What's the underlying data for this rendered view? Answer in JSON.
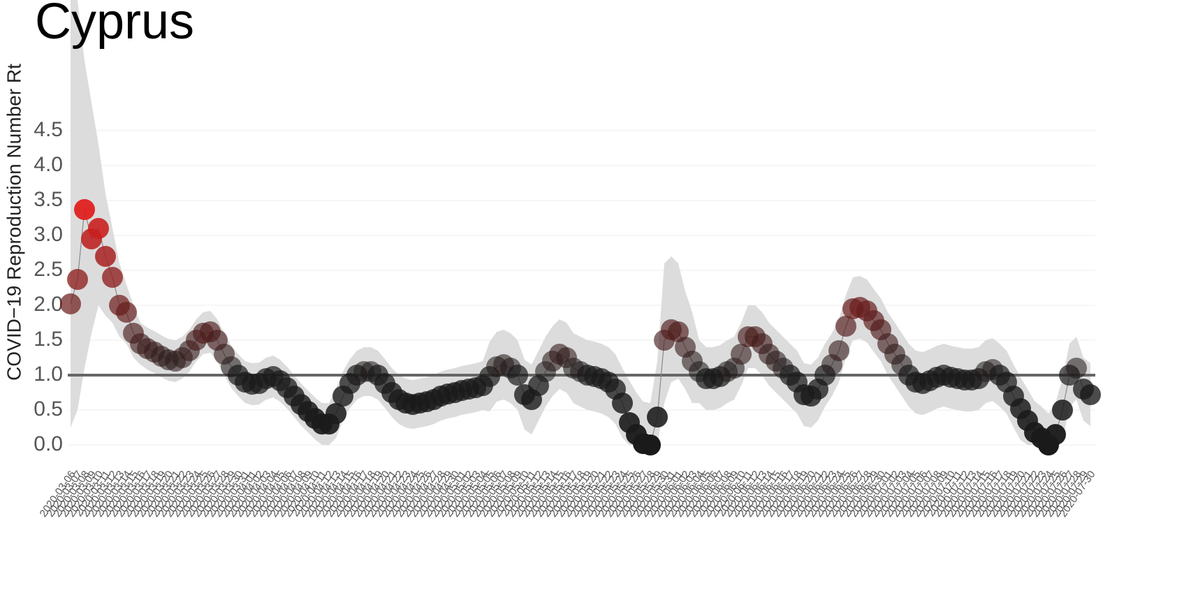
{
  "chart_data": {
    "type": "line",
    "title": "Cyprus",
    "y_label": "COVID−19 Reproduction Number Rt",
    "categories": [
      "2020-03-06",
      "2020-03-07",
      "2020-03-08",
      "2020-03-09",
      "2020-03-10",
      "2020-03-11",
      "2020-03-12",
      "2020-03-13",
      "2020-03-14",
      "2020-03-15",
      "2020-03-16",
      "2020-03-17",
      "2020-03-18",
      "2020-03-19",
      "2020-03-20",
      "2020-03-21",
      "2020-03-22",
      "2020-03-23",
      "2020-03-24",
      "2020-03-25",
      "2020-03-26",
      "2020-03-27",
      "2020-03-28",
      "2020-03-29",
      "2020-03-30",
      "2020-03-31",
      "2020-04-01",
      "2020-04-02",
      "2020-04-03",
      "2020-04-04",
      "2020-04-05",
      "2020-04-06",
      "2020-04-07",
      "2020-04-08",
      "2020-04-09",
      "2020-04-10",
      "2020-04-11",
      "2020-04-12",
      "2020-04-13",
      "2020-04-14",
      "2020-04-15",
      "2020-04-16",
      "2020-04-17",
      "2020-04-18",
      "2020-04-19",
      "2020-04-20",
      "2020-04-21",
      "2020-04-22",
      "2020-04-23",
      "2020-04-24",
      "2020-04-25",
      "2020-04-26",
      "2020-04-27",
      "2020-04-28",
      "2020-04-29",
      "2020-04-30",
      "2020-05-01",
      "2020-05-02",
      "2020-05-03",
      "2020-05-04",
      "2020-05-05",
      "2020-05-06",
      "2020-05-07",
      "2020-05-08",
      "2020-05-09",
      "2020-05-10",
      "2020-05-11",
      "2020-05-12",
      "2020-05-13",
      "2020-05-14",
      "2020-05-15",
      "2020-05-16",
      "2020-05-17",
      "2020-05-18",
      "2020-05-19",
      "2020-05-20",
      "2020-05-21",
      "2020-05-22",
      "2020-05-23",
      "2020-05-24",
      "2020-05-25",
      "2020-05-26",
      "2020-05-27",
      "2020-05-28",
      "2020-05-29",
      "2020-05-30",
      "2020-05-31",
      "2020-06-01",
      "2020-06-02",
      "2020-06-03",
      "2020-06-04",
      "2020-06-05",
      "2020-06-06",
      "2020-06-07",
      "2020-06-08",
      "2020-06-09",
      "2020-06-10",
      "2020-06-11",
      "2020-06-12",
      "2020-06-13",
      "2020-06-14",
      "2020-06-15",
      "2020-06-16",
      "2020-06-17",
      "2020-06-18",
      "2020-06-19",
      "2020-06-20",
      "2020-06-21",
      "2020-06-22",
      "2020-06-23",
      "2020-06-24",
      "2020-06-25",
      "2020-06-26",
      "2020-06-27",
      "2020-06-28",
      "2020-06-29",
      "2020-06-30",
      "2020-07-01",
      "2020-07-02",
      "2020-07-03",
      "2020-07-04",
      "2020-07-05",
      "2020-07-06",
      "2020-07-07",
      "2020-07-08",
      "2020-07-09",
      "2020-07-10",
      "2020-07-11",
      "2020-07-12",
      "2020-07-13",
      "2020-07-14",
      "2020-07-15",
      "2020-07-16",
      "2020-07-17",
      "2020-07-18",
      "2020-07-19",
      "2020-07-20",
      "2020-07-21",
      "2020-07-22",
      "2020-07-23",
      "2020-07-24",
      "2020-07-25",
      "2020-07-26",
      "2020-07-27",
      "2020-07-28",
      "2020-07-29",
      "2020-07-30"
    ],
    "values": [
      2.02,
      2.37,
      3.37,
      2.95,
      3.1,
      2.7,
      2.4,
      2.0,
      1.9,
      1.6,
      1.45,
      1.38,
      1.33,
      1.27,
      1.22,
      1.2,
      1.25,
      1.35,
      1.5,
      1.6,
      1.62,
      1.5,
      1.3,
      1.12,
      1.0,
      0.9,
      0.87,
      0.88,
      0.95,
      0.98,
      0.92,
      0.82,
      0.7,
      0.58,
      0.48,
      0.38,
      0.3,
      0.3,
      0.45,
      0.7,
      0.88,
      1.0,
      1.05,
      1.05,
      1.0,
      0.88,
      0.75,
      0.65,
      0.6,
      0.58,
      0.6,
      0.62,
      0.65,
      0.7,
      0.73,
      0.75,
      0.78,
      0.8,
      0.82,
      0.85,
      0.98,
      1.12,
      1.15,
      1.1,
      1.0,
      0.72,
      0.65,
      0.85,
      1.05,
      1.2,
      1.3,
      1.25,
      1.1,
      1.05,
      1.0,
      0.98,
      0.95,
      0.9,
      0.8,
      0.6,
      0.32,
      0.15,
      0.02,
      0.0,
      0.4,
      1.5,
      1.65,
      1.62,
      1.4,
      1.2,
      1.05,
      0.95,
      0.95,
      0.98,
      1.05,
      1.1,
      1.3,
      1.55,
      1.55,
      1.45,
      1.3,
      1.2,
      1.1,
      1.0,
      0.9,
      0.72,
      0.7,
      0.8,
      1.0,
      1.15,
      1.35,
      1.7,
      1.95,
      1.97,
      1.92,
      1.78,
      1.65,
      1.45,
      1.3,
      1.15,
      1.0,
      0.9,
      0.88,
      0.92,
      0.97,
      1.0,
      0.97,
      0.95,
      0.93,
      0.93,
      0.95,
      1.05,
      1.08,
      1.0,
      0.9,
      0.7,
      0.52,
      0.35,
      0.18,
      0.1,
      0.0,
      0.15,
      0.5,
      1.0,
      1.1,
      0.8,
      0.72
    ],
    "upper": [
      6.37,
      6.37,
      5.5,
      4.9,
      4.3,
      3.6,
      3.1,
      2.6,
      2.3,
      2.0,
      1.75,
      1.68,
      1.63,
      1.57,
      1.52,
      1.5,
      1.55,
      1.65,
      1.8,
      1.9,
      1.92,
      1.8,
      1.6,
      1.42,
      1.3,
      1.2,
      1.17,
      1.18,
      1.25,
      1.28,
      1.22,
      1.12,
      1.0,
      0.88,
      0.78,
      0.68,
      0.6,
      0.6,
      0.8,
      1.05,
      1.23,
      1.35,
      1.4,
      1.4,
      1.35,
      1.23,
      1.1,
      1.0,
      0.95,
      0.93,
      0.95,
      0.97,
      1.0,
      1.05,
      1.08,
      1.1,
      1.13,
      1.15,
      1.17,
      1.2,
      1.48,
      1.62,
      1.65,
      1.6,
      1.5,
      1.22,
      1.15,
      1.35,
      1.55,
      1.7,
      1.8,
      1.75,
      1.6,
      1.55,
      1.5,
      1.48,
      1.45,
      1.4,
      1.3,
      1.1,
      0.92,
      0.75,
      0.62,
      0.6,
      1.2,
      2.6,
      2.7,
      2.6,
      2.2,
      1.9,
      1.5,
      1.4,
      1.4,
      1.43,
      1.5,
      1.55,
      1.75,
      2.0,
      2.0,
      1.9,
      1.75,
      1.65,
      1.55,
      1.45,
      1.35,
      1.17,
      1.15,
      1.25,
      1.45,
      1.6,
      1.8,
      2.15,
      2.4,
      2.42,
      2.37,
      2.23,
      2.1,
      1.9,
      1.75,
      1.6,
      1.45,
      1.35,
      1.33,
      1.37,
      1.42,
      1.45,
      1.42,
      1.4,
      1.38,
      1.38,
      1.4,
      1.5,
      1.53,
      1.45,
      1.35,
      1.15,
      0.97,
      0.8,
      0.63,
      0.55,
      0.45,
      0.6,
      0.95,
      1.45,
      1.55,
      1.25,
      1.17
    ],
    "lower": [
      0.25,
      0.5,
      1.1,
      1.6,
      2.0,
      1.85,
      1.75,
      1.55,
      1.45,
      1.25,
      1.15,
      1.08,
      1.03,
      0.97,
      0.92,
      0.9,
      0.95,
      1.05,
      1.2,
      1.3,
      1.32,
      1.2,
      1.0,
      0.82,
      0.7,
      0.6,
      0.57,
      0.58,
      0.65,
      0.68,
      0.62,
      0.52,
      0.4,
      0.28,
      0.18,
      0.08,
      0.0,
      0.0,
      0.1,
      0.35,
      0.53,
      0.65,
      0.7,
      0.7,
      0.65,
      0.53,
      0.4,
      0.3,
      0.25,
      0.23,
      0.25,
      0.27,
      0.3,
      0.35,
      0.38,
      0.4,
      0.43,
      0.45,
      0.47,
      0.5,
      0.48,
      0.62,
      0.65,
      0.6,
      0.5,
      0.22,
      0.15,
      0.35,
      0.55,
      0.7,
      0.8,
      0.75,
      0.6,
      0.55,
      0.5,
      0.48,
      0.45,
      0.4,
      0.3,
      0.1,
      0.0,
      0.0,
      0.0,
      0.0,
      0.0,
      0.6,
      0.9,
      0.95,
      0.8,
      0.6,
      0.6,
      0.5,
      0.5,
      0.53,
      0.6,
      0.65,
      0.85,
      1.1,
      1.1,
      1.0,
      0.85,
      0.75,
      0.65,
      0.55,
      0.45,
      0.27,
      0.25,
      0.35,
      0.55,
      0.7,
      0.9,
      1.25,
      1.5,
      1.52,
      1.47,
      1.33,
      1.2,
      1.0,
      0.85,
      0.7,
      0.55,
      0.45,
      0.43,
      0.47,
      0.52,
      0.55,
      0.52,
      0.5,
      0.48,
      0.48,
      0.5,
      0.6,
      0.63,
      0.55,
      0.45,
      0.25,
      0.07,
      0.0,
      0.0,
      0.0,
      0.0,
      0.0,
      0.05,
      0.55,
      0.65,
      0.35,
      0.27
    ],
    "reference_line": 1,
    "ylim": [
      -0.25,
      6.37
    ],
    "yticks": [
      {
        "value": 0,
        "label": "0.0"
      },
      0.5,
      {
        "value": 1,
        "label": "1.0"
      },
      1.5,
      {
        "value": 2,
        "label": "2.0"
      },
      2.5,
      {
        "value": 3,
        "label": "3.0"
      },
      3.5,
      {
        "value": 4,
        "label": "4.0"
      },
      4.5
    ],
    "grid": true,
    "band_color": "#dcdcdc",
    "low_color": "#1a1a1a",
    "high_color": "#e32020",
    "line_color": "#888888"
  }
}
